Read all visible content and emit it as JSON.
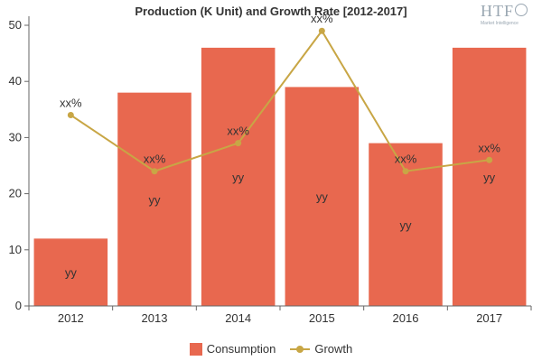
{
  "chart_data": {
    "type": "bar",
    "title": "Production (K Unit) and Growth Rate [2012-2017]",
    "categories": [
      "2012",
      "2013",
      "2014",
      "2015",
      "2016",
      "2017"
    ],
    "ylim": [
      0,
      50
    ],
    "yticks": [
      0,
      10,
      20,
      30,
      40,
      50
    ],
    "grid": false,
    "legend_position": "bottom",
    "series": [
      {
        "name": "Consumption",
        "type": "bar",
        "color": "#e8684f",
        "values": [
          12,
          38,
          46,
          39,
          29,
          46
        ],
        "data_labels": [
          "yy",
          "yy",
          "yy",
          "yy",
          "yy",
          "yy"
        ]
      },
      {
        "name": "Growth",
        "type": "line",
        "color": "#c8a645",
        "values": [
          34,
          24,
          29,
          49,
          24,
          26
        ],
        "data_labels": [
          "xx%",
          "xx%",
          "xx%",
          "xx%",
          "xx%",
          "xx%"
        ]
      }
    ]
  },
  "logo": {
    "main": "HTF",
    "sub": "Market Intelligence"
  }
}
